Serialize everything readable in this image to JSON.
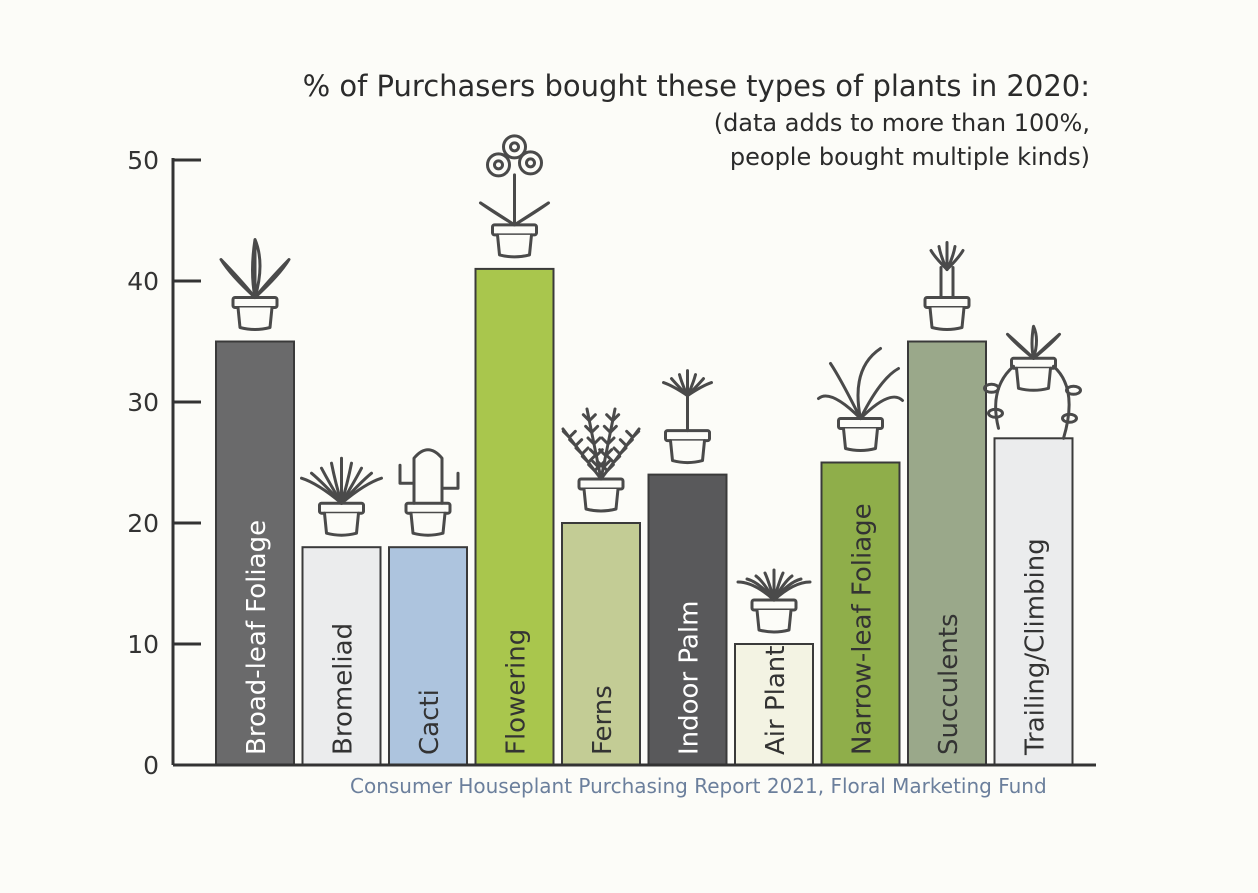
{
  "chart_data": {
    "type": "bar",
    "title": "% of Purchasers bought these types of plants in 2020:",
    "subtitle_lines": [
      "(data adds to more than 100%,",
      "people bought multiple kinds)"
    ],
    "categories": [
      "Broad-leaf Foliage",
      "Bromeliad",
      "Cacti",
      "Flowering",
      "Ferns",
      "Indoor Palm",
      "Air Plant",
      "Narrow-leaf Foliage",
      "Succulents",
      "Trailing/Climbing"
    ],
    "values": [
      35,
      18,
      18,
      41,
      20,
      24,
      10,
      25,
      35,
      27
    ],
    "bar_colors": [
      "#6a6a6b",
      "#ebeced",
      "#adc4de",
      "#a9c64d",
      "#c3cc95",
      "#59595b",
      "#f3f3e3",
      "#8fae4a",
      "#9aa88a",
      "#ebeced"
    ],
    "label_colors": [
      "#ffffff",
      "#333333",
      "#333333",
      "#333333",
      "#333333",
      "#ffffff",
      "#333333",
      "#333333",
      "#333333",
      "#333333"
    ],
    "icons": [
      "broadleaf-plant-icon",
      "bromeliad-icon",
      "cactus-icon",
      "flowering-plant-icon",
      "fern-icon",
      "palm-icon",
      "air-plant-icon",
      "narrowleaf-plant-icon",
      "succulent-icon",
      "trailing-plant-icon"
    ],
    "y_ticks": [
      0,
      10,
      20,
      30,
      40,
      50
    ],
    "ylim": [
      0,
      50
    ],
    "grid": false,
    "source": "Consumer Houseplant Purchasing Report 2021, Floral Marketing Fund"
  }
}
